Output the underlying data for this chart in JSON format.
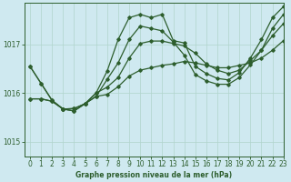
{
  "title": "Graphe pression niveau de la mer (hPa)",
  "bg_color": "#cfe9f0",
  "grid_color": "#b0d4cc",
  "line_color": "#2d5e2d",
  "xlim": [
    -0.5,
    23
  ],
  "ylim": [
    1014.7,
    1017.85
  ],
  "yticks": [
    1015,
    1016,
    1017
  ],
  "xticks": [
    0,
    1,
    2,
    3,
    4,
    5,
    6,
    7,
    8,
    9,
    10,
    11,
    12,
    13,
    14,
    15,
    16,
    17,
    18,
    19,
    20,
    21,
    22,
    23
  ],
  "series": [
    [
      1016.55,
      1016.2,
      1015.85,
      1015.67,
      1015.68,
      1015.78,
      1016.0,
      1016.45,
      1017.1,
      1017.55,
      1017.62,
      1017.55,
      1017.62,
      1017.08,
      1017.03,
      1016.55,
      1016.4,
      1016.3,
      1016.27,
      1016.42,
      1016.72,
      1017.1,
      1017.55,
      1017.78
    ],
    [
      1015.88,
      1015.88,
      1015.83,
      1015.67,
      1015.63,
      1015.78,
      1015.93,
      1015.97,
      1016.13,
      1016.35,
      1016.47,
      1016.52,
      1016.57,
      1016.6,
      1016.65,
      1016.62,
      1016.57,
      1016.52,
      1016.52,
      1016.57,
      1016.62,
      1016.72,
      1016.88,
      1017.08
    ],
    [
      1015.88,
      1015.88,
      1015.83,
      1015.67,
      1015.63,
      1015.78,
      1015.93,
      1016.28,
      1016.62,
      1017.1,
      1017.38,
      1017.33,
      1017.28,
      1017.05,
      1016.78,
      1016.38,
      1016.25,
      1016.18,
      1016.18,
      1016.32,
      1016.58,
      1016.88,
      1017.33,
      1017.62
    ],
    [
      1016.55,
      1016.2,
      1015.85,
      1015.67,
      1015.68,
      1015.78,
      1016.0,
      1016.12,
      1016.32,
      1016.72,
      1017.02,
      1017.07,
      1017.07,
      1017.02,
      1016.97,
      1016.82,
      1016.6,
      1016.47,
      1016.4,
      1016.47,
      1016.67,
      1016.88,
      1017.18,
      1017.43
    ]
  ]
}
